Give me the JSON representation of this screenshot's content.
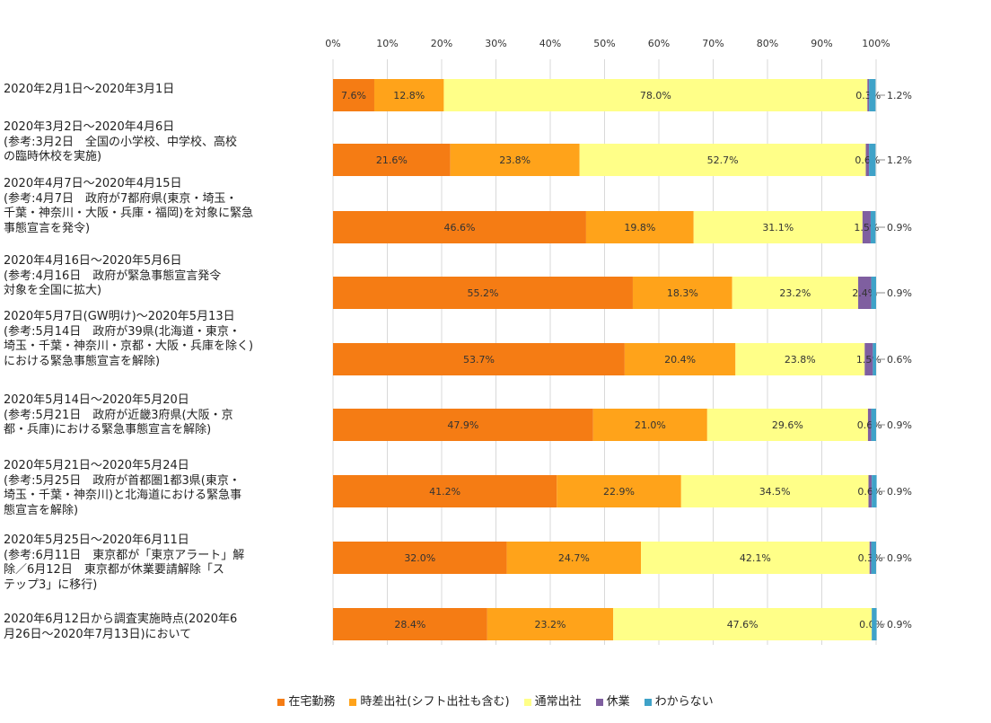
{
  "chart_data": {
    "type": "bar",
    "orientation": "horizontal",
    "stacked": true,
    "xlim": [
      0,
      100
    ],
    "x_ticks": [
      "0%",
      "10%",
      "20%",
      "30%",
      "40%",
      "50%",
      "60%",
      "70%",
      "80%",
      "90%",
      "100%"
    ],
    "categories": [
      [
        "2020年2月1日～2020年3月1日"
      ],
      [
        "2020年3月2日～2020年4月6日",
        "(参考:3月2日　全国の小学校、中学校、高校",
        "の臨時休校を実施)"
      ],
      [
        "2020年4月7日～2020年4月15日",
        "(参考:4月7日　政府が7都府県(東京・埼玉・",
        "千葉・神奈川・大阪・兵庫・福岡)を対象に緊急",
        "事態宣言を発令)"
      ],
      [
        "2020年4月16日～2020年5月6日",
        "(参考:4月16日　政府が緊急事態宣言発令",
        "対象を全国に拡大)"
      ],
      [
        "2020年5月7日(GW明け)～2020年5月13日",
        "(参考:5月14日　政府が39県(北海道・東京・",
        "埼玉・千葉・神奈川・京都・大阪・兵庫を除く)",
        "における緊急事態宣言を解除)"
      ],
      [
        "2020年5月14日～2020年5月20日",
        "(参考:5月21日　政府が近畿3府県(大阪・京",
        "都・兵庫)における緊急事態宣言を解除)"
      ],
      [
        "2020年5月21日～2020年5月24日",
        "(参考:5月25日　政府が首都圏1都3県(東京・",
        "埼玉・千葉・神奈川)と北海道における緊急事",
        "態宣言を解除)"
      ],
      [
        "2020年5月25日～2020年6月11日",
        "(参考:6月11日　東京都が「東京アラート」解",
        "除／6月12日　東京都が休業要請解除「ス",
        "テップ3」に移行)"
      ],
      [
        "2020年6月12日から調査実施時点(2020年6",
        "月26日～2020年7月13日)において"
      ]
    ],
    "series": [
      {
        "name": "在宅勤務",
        "color": "#F57C14",
        "values": [
          7.6,
          21.6,
          46.6,
          55.2,
          53.7,
          47.9,
          41.2,
          32.0,
          28.4
        ]
      },
      {
        "name": "時差出社(シフト出社も含む)",
        "color": "#FFA31A",
        "values": [
          12.8,
          23.8,
          19.8,
          18.3,
          20.4,
          21.0,
          22.9,
          24.7,
          23.2
        ]
      },
      {
        "name": "通常出社",
        "color": "#FFFF88",
        "values": [
          78.0,
          52.7,
          31.1,
          23.2,
          23.8,
          29.6,
          34.5,
          42.1,
          47.6
        ]
      },
      {
        "name": "休業",
        "color": "#7F5FA0",
        "values": [
          0.3,
          0.6,
          1.5,
          2.4,
          1.5,
          0.6,
          0.6,
          0.3,
          0.0
        ]
      },
      {
        "name": "わからない",
        "color": "#3FA2C8",
        "values": [
          1.2,
          1.2,
          0.9,
          0.9,
          0.6,
          0.9,
          0.9,
          0.9,
          0.9
        ]
      }
    ],
    "value_labels": {
      "在宅勤務": [
        "7.6%",
        "21.6%",
        "46.6%",
        "55.2%",
        "53.7%",
        "47.9%",
        "41.2%",
        "32.0%",
        "28.4%"
      ],
      "時差出社(シフト出社も含む)": [
        "12.8%",
        "23.8%",
        "19.8%",
        "18.3%",
        "20.4%",
        "21.0%",
        "22.9%",
        "24.7%",
        "23.2%"
      ],
      "通常出社": [
        "78.0%",
        "52.7%",
        "31.1%",
        "23.2%",
        "23.8%",
        "29.6%",
        "34.5%",
        "42.1%",
        "47.6%"
      ],
      "休業": [
        "0.3%",
        "0.6%",
        "1.5%",
        "2.4%",
        "1.5%",
        "0.6%",
        "0.6%",
        "0.3%",
        "0.0%"
      ],
      "わからない": [
        "1.2%",
        "1.2%",
        "0.9%",
        "0.9%",
        "0.6%",
        "0.9%",
        "0.9%",
        "0.9%",
        "0.9%"
      ]
    },
    "legend_position": "bottom",
    "grid": true
  }
}
